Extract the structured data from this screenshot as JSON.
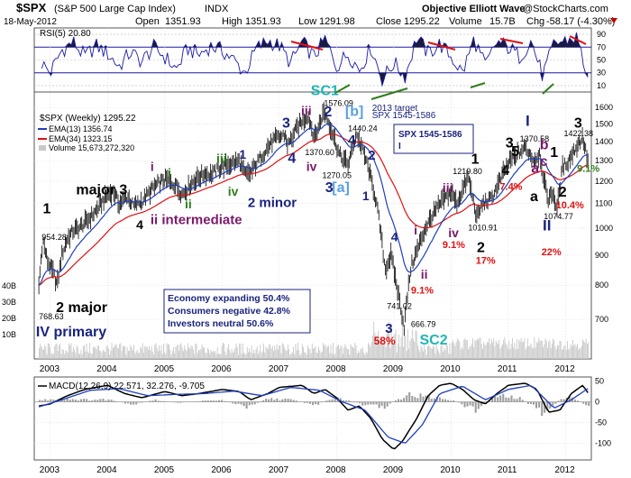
{
  "header": {
    "symbol": "$SPX",
    "name": "(S&P 500 Large Cap Index)",
    "exchange": "INDX",
    "date": "18-May-2012",
    "open_label": "Open",
    "open": "1351.93",
    "high_label": "High",
    "high": "1351.93",
    "low_label": "Low",
    "low": "1291.98",
    "close_label": "Close",
    "close": "1295.22",
    "volume_label": "Volume",
    "volume": "15.7B",
    "chg_label": "Chg",
    "chg": "-58.17 (-4.30%)",
    "brand": "Objective Elliott Wave",
    "source": "@StockCharts.com"
  },
  "colors": {
    "price": "#000000",
    "ema13": "#1f3fbf",
    "ema34": "#e01010",
    "volume": "#c8c8c8",
    "rsi": "#1a1aa6",
    "macd": "#000000",
    "signal": "#1f3fbf",
    "hist": "#9a9a9a",
    "wave_black": "#000000",
    "wave_purple": "#7a1a6a",
    "wave_green": "#2e7d1a",
    "wave_navy": "#1a237e",
    "wave_cyan": "#1fb5b5",
    "wave_red": "#e01010",
    "wave_lightblue": "#5aa0e0"
  },
  "chart_data": [
    {
      "type": "line",
      "panel": "rsi",
      "title": "RSI(5) 20.80",
      "ylim": [
        0,
        100
      ],
      "ticks": [
        "90",
        "70",
        "50",
        "30",
        "10"
      ],
      "x": [
        2002.85,
        2003.0,
        2003.2,
        2003.4,
        2003.6,
        2003.8,
        2004.0,
        2004.2,
        2004.4,
        2004.6,
        2004.8,
        2005.0,
        2005.2,
        2005.4,
        2005.6,
        2005.8,
        2006.0,
        2006.2,
        2006.4,
        2006.6,
        2006.8,
        2007.0,
        2007.2,
        2007.4,
        2007.6,
        2007.8,
        2008.0,
        2008.2,
        2008.4,
        2008.6,
        2008.8,
        2009.0,
        2009.2,
        2009.4,
        2009.6,
        2009.8,
        2010.0,
        2010.2,
        2010.4,
        2010.6,
        2010.8,
        2011.0,
        2011.2,
        2011.4,
        2011.6,
        2011.8,
        2012.0,
        2012.2,
        2012.39
      ],
      "values": [
        45,
        30,
        65,
        78,
        55,
        72,
        60,
        40,
        62,
        48,
        70,
        55,
        35,
        68,
        58,
        72,
        65,
        50,
        30,
        68,
        80,
        72,
        45,
        78,
        55,
        82,
        40,
        60,
        35,
        70,
        20,
        45,
        25,
        85,
        60,
        75,
        55,
        30,
        82,
        40,
        78,
        70,
        55,
        80,
        25,
        75,
        80,
        85,
        21
      ]
    },
    {
      "type": "line",
      "panel": "price",
      "title": "$SPX (Weekly) 1295.22",
      "ylim": [
        600,
        1700
      ],
      "ticks": [
        "1600",
        "1500",
        "1400",
        "1300",
        "1200",
        "1100",
        "1000",
        "900",
        "800",
        "700"
      ],
      "x_ticks": [
        "2003",
        "2004",
        "2005",
        "2006",
        "2007",
        "2008",
        "2009",
        "2010",
        "2011",
        "2012"
      ],
      "legend": {
        "ema13": "EMA(13) 1356.74",
        "ema34": "EMA(34) 1323.15",
        "volume": "Volume 15,673,272,320"
      },
      "x": [
        2002.8,
        2002.87,
        2002.95,
        2003.05,
        2003.12,
        2003.2,
        2003.3,
        2003.4,
        2003.5,
        2003.65,
        2003.8,
        2004.0,
        2004.1,
        2004.2,
        2004.35,
        2004.45,
        2004.6,
        2004.8,
        2005.0,
        2005.2,
        2005.3,
        2005.5,
        2005.7,
        2005.8,
        2006.0,
        2006.3,
        2006.4,
        2006.5,
        2006.7,
        2006.9,
        2007.1,
        2007.15,
        2007.35,
        2007.5,
        2007.62,
        2007.78,
        2007.9,
        2008.05,
        2008.2,
        2008.35,
        2008.45,
        2008.55,
        2008.7,
        2008.85,
        2008.95,
        2009.05,
        2009.18,
        2009.3,
        2009.45,
        2009.55,
        2009.7,
        2009.85,
        2010.0,
        2010.1,
        2010.3,
        2010.45,
        2010.55,
        2010.7,
        2010.85,
        2011.0,
        2011.15,
        2011.3,
        2011.45,
        2011.55,
        2011.62,
        2011.7,
        2011.78,
        2011.85,
        2011.95,
        2012.05,
        2012.2,
        2012.3,
        2012.39
      ],
      "values": [
        800,
        954,
        880,
        840,
        800,
        900,
        960,
        990,
        1000,
        1030,
        1070,
        1140,
        1155,
        1100,
        1130,
        1090,
        1110,
        1170,
        1210,
        1180,
        1140,
        1200,
        1240,
        1230,
        1270,
        1300,
        1230,
        1240,
        1330,
        1410,
        1440,
        1380,
        1500,
        1550,
        1420,
        1576,
        1480,
        1330,
        1280,
        1440,
        1360,
        1270,
        1100,
        850,
        900,
        800,
        680,
        860,
        940,
        1000,
        1060,
        1110,
        1150,
        1100,
        1219,
        1040,
        1100,
        1120,
        1200,
        1290,
        1330,
        1370,
        1300,
        1340,
        1200,
        1120,
        1150,
        1075,
        1270,
        1300,
        1380,
        1422,
        1295
      ]
    },
    {
      "type": "line",
      "panel": "macd",
      "title": "MACD(12,26,9) 22.571, 32.276, -9.705",
      "ylim": [
        -140,
        60
      ],
      "ticks": [
        "50",
        "0",
        "-50",
        "-100"
      ],
      "x_ticks": [
        "2003",
        "2004",
        "2005",
        "2006",
        "2007",
        "2008",
        "2009",
        "2010",
        "2011",
        "2012"
      ],
      "series": [
        {
          "key": "macd",
          "x": [
            2002.8,
            2003.0,
            2003.3,
            2003.6,
            2004.0,
            2004.3,
            2004.6,
            2005.0,
            2005.3,
            2005.6,
            2006.0,
            2006.3,
            2006.5,
            2006.8,
            2007.0,
            2007.4,
            2007.6,
            2007.8,
            2008.0,
            2008.2,
            2008.4,
            2008.6,
            2008.8,
            2009.0,
            2009.15,
            2009.4,
            2009.6,
            2009.8,
            2010.0,
            2010.2,
            2010.4,
            2010.6,
            2010.8,
            2011.0,
            2011.3,
            2011.5,
            2011.7,
            2011.9,
            2012.1,
            2012.3,
            2012.39
          ],
          "values": [
            -10,
            -5,
            15,
            30,
            40,
            20,
            10,
            25,
            15,
            20,
            30,
            25,
            5,
            20,
            35,
            40,
            20,
            30,
            10,
            -20,
            -10,
            -40,
            -90,
            -115,
            -95,
            -40,
            15,
            40,
            45,
            30,
            5,
            -5,
            20,
            40,
            45,
            30,
            -25,
            -20,
            20,
            40,
            22
          ]
        },
        {
          "key": "signal",
          "x": [
            2002.8,
            2003.2,
            2003.7,
            2004.2,
            2004.7,
            2005.2,
            2005.7,
            2006.2,
            2006.7,
            2007.2,
            2007.7,
            2008.1,
            2008.5,
            2008.9,
            2009.2,
            2009.5,
            2009.8,
            2010.2,
            2010.6,
            2011.0,
            2011.4,
            2011.8,
            2012.1,
            2012.39
          ],
          "values": [
            -12,
            5,
            28,
            32,
            15,
            18,
            20,
            26,
            15,
            35,
            28,
            0,
            -20,
            -85,
            -100,
            -55,
            20,
            38,
            5,
            30,
            40,
            -15,
            5,
            32
          ]
        }
      ],
      "hist_x": [
        2002.8,
        2003.2,
        2003.6,
        2004.0,
        2004.4,
        2004.8,
        2005.2,
        2005.6,
        2006.0,
        2006.4,
        2006.8,
        2007.2,
        2007.6,
        2008.0,
        2008.4,
        2008.8,
        2009.2,
        2009.6,
        2010.0,
        2010.4,
        2010.8,
        2011.2,
        2011.6,
        2012.0,
        2012.39
      ],
      "hist": [
        4,
        8,
        5,
        6,
        -8,
        5,
        -3,
        2,
        4,
        -12,
        8,
        5,
        -8,
        12,
        -6,
        -15,
        18,
        12,
        5,
        -20,
        15,
        8,
        -28,
        18,
        -10
      ]
    }
  ],
  "price_annotations": [
    {
      "text": "1",
      "x": 2002.87,
      "y": 1060,
      "color": "wave_black",
      "size": 16
    },
    {
      "text": "954.28",
      "x": 2002.85,
      "y": 955,
      "color": "wave_black",
      "size": 9
    },
    {
      "text": "768.63",
      "x": 2002.8,
      "y": 700,
      "color": "wave_black",
      "size": 9
    },
    {
      "text": "2 major",
      "x": 2003.1,
      "y": 720,
      "color": "wave_black",
      "size": 16
    },
    {
      "text": "IV primary",
      "x": 2002.75,
      "y": 655,
      "color": "wave_navy",
      "size": 16
    },
    {
      "text": "major 3",
      "x": 2003.45,
      "y": 1140,
      "color": "wave_black",
      "size": 16
    },
    {
      "text": "4",
      "x": 2004.5,
      "y": 995,
      "color": "wave_black",
      "size": 14
    },
    {
      "text": "ii intermediate",
      "x": 2004.75,
      "y": 1015,
      "color": "wave_purple",
      "size": 15
    },
    {
      "text": "i",
      "x": 2004.75,
      "y": 1250,
      "color": "wave_purple",
      "size": 14
    },
    {
      "text": "i",
      "x": 2005.05,
      "y": 1220,
      "color": "wave_green",
      "size": 14
    },
    {
      "text": "ii",
      "x": 2005.35,
      "y": 1080,
      "color": "wave_green",
      "size": 14
    },
    {
      "text": "iii",
      "x": 2005.9,
      "y": 1290,
      "color": "wave_green",
      "size": 14
    },
    {
      "text": "iv",
      "x": 2006.1,
      "y": 1135,
      "color": "wave_green",
      "size": 14
    },
    {
      "text": "1",
      "x": 2006.3,
      "y": 1310,
      "color": "wave_navy",
      "size": 14
    },
    {
      "text": "2 minor",
      "x": 2006.45,
      "y": 1085,
      "color": "wave_navy",
      "size": 15
    },
    {
      "text": "3",
      "x": 2007.05,
      "y": 1480,
      "color": "wave_navy",
      "size": 16
    },
    {
      "text": "4",
      "x": 2007.15,
      "y": 1290,
      "color": "wave_navy",
      "size": 16
    },
    {
      "text": "iii",
      "x": 2007.38,
      "y": 1555,
      "color": "wave_purple",
      "size": 14
    },
    {
      "text": "iv",
      "x": 2007.47,
      "y": 1250,
      "color": "wave_purple",
      "size": 14
    },
    {
      "text": "SC1",
      "x": 2007.55,
      "y": 1680,
      "color": "wave_cyan",
      "size": 16
    },
    {
      "text": "1576.09",
      "x": 2007.78,
      "y": 1610,
      "color": "wave_black",
      "size": 9
    },
    {
      "text": "2",
      "x": 2007.78,
      "y": 1545,
      "color": "wave_navy",
      "size": 16
    },
    {
      "text": "[b]",
      "x": 2008.15,
      "y": 1550,
      "color": "wave_lightblue",
      "size": 16
    },
    {
      "text": "1370.60",
      "x": 2007.45,
      "y": 1330,
      "color": "wave_black",
      "size": 9
    },
    {
      "text": "1440.24",
      "x": 2008.2,
      "y": 1460,
      "color": "wave_black",
      "size": 9
    },
    {
      "text": "1270.05",
      "x": 2007.75,
      "y": 1215,
      "color": "wave_black",
      "size": 9
    },
    {
      "text": "4",
      "x": 2008.2,
      "y": 1385,
      "color": "wave_navy",
      "size": 15
    },
    {
      "text": "2",
      "x": 2008.55,
      "y": 1305,
      "color": "wave_navy",
      "size": 15
    },
    {
      "text": "3",
      "x": 2007.8,
      "y": 1150,
      "color": "wave_navy",
      "size": 16
    },
    {
      "text": "[a]",
      "x": 2007.92,
      "y": 1150,
      "color": "wave_lightblue",
      "size": 16
    },
    {
      "text": "1",
      "x": 2008.45,
      "y": 1115,
      "color": "wave_navy",
      "size": 14
    },
    {
      "text": "4",
      "x": 2008.95,
      "y": 950,
      "color": "wave_navy",
      "size": 14
    },
    {
      "text": "741.02",
      "x": 2008.88,
      "y": 730,
      "color": "wave_black",
      "size": 9
    },
    {
      "text": "666.79",
      "x": 2009.3,
      "y": 680,
      "color": "wave_black",
      "size": 9
    },
    {
      "text": "3",
      "x": 2008.85,
      "y": 665,
      "color": "wave_navy",
      "size": 15
    },
    {
      "text": "58%",
      "x": 2008.65,
      "y": 635,
      "color": "wave_red",
      "size": 12
    },
    {
      "text": "SC2",
      "x": 2009.45,
      "y": 635,
      "color": "wave_cyan",
      "size": 16
    },
    {
      "text": "i",
      "x": 2009.35,
      "y": 975,
      "color": "wave_purple",
      "size": 14
    },
    {
      "text": "ii",
      "x": 2009.47,
      "y": 820,
      "color": "wave_purple",
      "size": 14
    },
    {
      "text": "9.1%",
      "x": 2009.3,
      "y": 775,
      "color": "wave_red",
      "size": 11
    },
    {
      "text": "iii",
      "x": 2009.85,
      "y": 1150,
      "color": "wave_purple",
      "size": 14
    },
    {
      "text": "iv",
      "x": 2009.95,
      "y": 965,
      "color": "wave_purple",
      "size": 14
    },
    {
      "text": "9.1%",
      "x": 2009.85,
      "y": 925,
      "color": "wave_red",
      "size": 11
    },
    {
      "text": "1219.80",
      "x": 2010.03,
      "y": 1235,
      "color": "wave_black",
      "size": 9
    },
    {
      "text": "1",
      "x": 2010.35,
      "y": 1285,
      "color": "wave_black",
      "size": 16
    },
    {
      "text": "1010.91",
      "x": 2010.3,
      "y": 990,
      "color": "wave_black",
      "size": 9
    },
    {
      "text": "2",
      "x": 2010.45,
      "y": 910,
      "color": "wave_black",
      "size": 16
    },
    {
      "text": "17%",
      "x": 2010.43,
      "y": 870,
      "color": "wave_red",
      "size": 11
    },
    {
      "text": "2013 target",
      "x": 2008.62,
      "y": 1580,
      "color": "wave_navy",
      "size": 10
    },
    {
      "text": "SPX 1545-1586",
      "x": 2008.62,
      "y": 1535,
      "color": "wave_navy",
      "size": 10
    },
    {
      "text": "I",
      "x": 2011.3,
      "y": 1490,
      "color": "wave_navy",
      "size": 17
    },
    {
      "text": "1370.58",
      "x": 2011.2,
      "y": 1400,
      "color": "wave_black",
      "size": 9
    },
    {
      "text": "3",
      "x": 2010.95,
      "y": 1370,
      "color": "wave_black",
      "size": 16
    },
    {
      "text": "4",
      "x": 2010.88,
      "y": 1230,
      "color": "wave_black",
      "size": 16
    },
    {
      "text": "5",
      "x": 2011.05,
      "y": 1325,
      "color": "wave_black",
      "size": 16
    },
    {
      "text": "7.4%",
      "x": 2010.85,
      "y": 1160,
      "color": "wave_red",
      "size": 11
    },
    {
      "text": "b",
      "x": 2011.55,
      "y": 1360,
      "color": "wave_purple",
      "size": 16
    },
    {
      "text": "c",
      "x": 2011.55,
      "y": 1275,
      "color": "wave_purple",
      "size": 16
    },
    {
      "text": "a",
      "x": 2011.4,
      "y": 1240,
      "color": "wave_purple",
      "size": 16
    },
    {
      "text": "a",
      "x": 2011.38,
      "y": 1110,
      "color": "wave_black",
      "size": 16
    },
    {
      "text": "1074.77",
      "x": 2011.62,
      "y": 1035,
      "color": "wave_black",
      "size": 9
    },
    {
      "text": "II",
      "x": 2011.6,
      "y": 990,
      "color": "wave_navy",
      "size": 17
    },
    {
      "text": "22%",
      "x": 2011.58,
      "y": 900,
      "color": "wave_red",
      "size": 11
    },
    {
      "text": "1",
      "x": 2011.73,
      "y": 1320,
      "color": "wave_black",
      "size": 16
    },
    {
      "text": "2",
      "x": 2011.88,
      "y": 1130,
      "color": "wave_black",
      "size": 16
    },
    {
      "text": "10.4%",
      "x": 2011.83,
      "y": 1080,
      "color": "wave_red",
      "size": 11
    },
    {
      "text": "3",
      "x": 2012.15,
      "y": 1480,
      "color": "wave_black",
      "size": 16
    },
    {
      "text": "1422.38",
      "x": 2011.97,
      "y": 1430,
      "color": "wave_black",
      "size": 9
    },
    {
      "text": "9.1%",
      "x": 2012.2,
      "y": 1245,
      "color": "wave_green",
      "size": 11
    }
  ],
  "sentiment": {
    "economy": "Economy expanding 50.4%",
    "consumers": "Consumers negative 42.8%",
    "investors": "Investors neutral 50.6%"
  }
}
